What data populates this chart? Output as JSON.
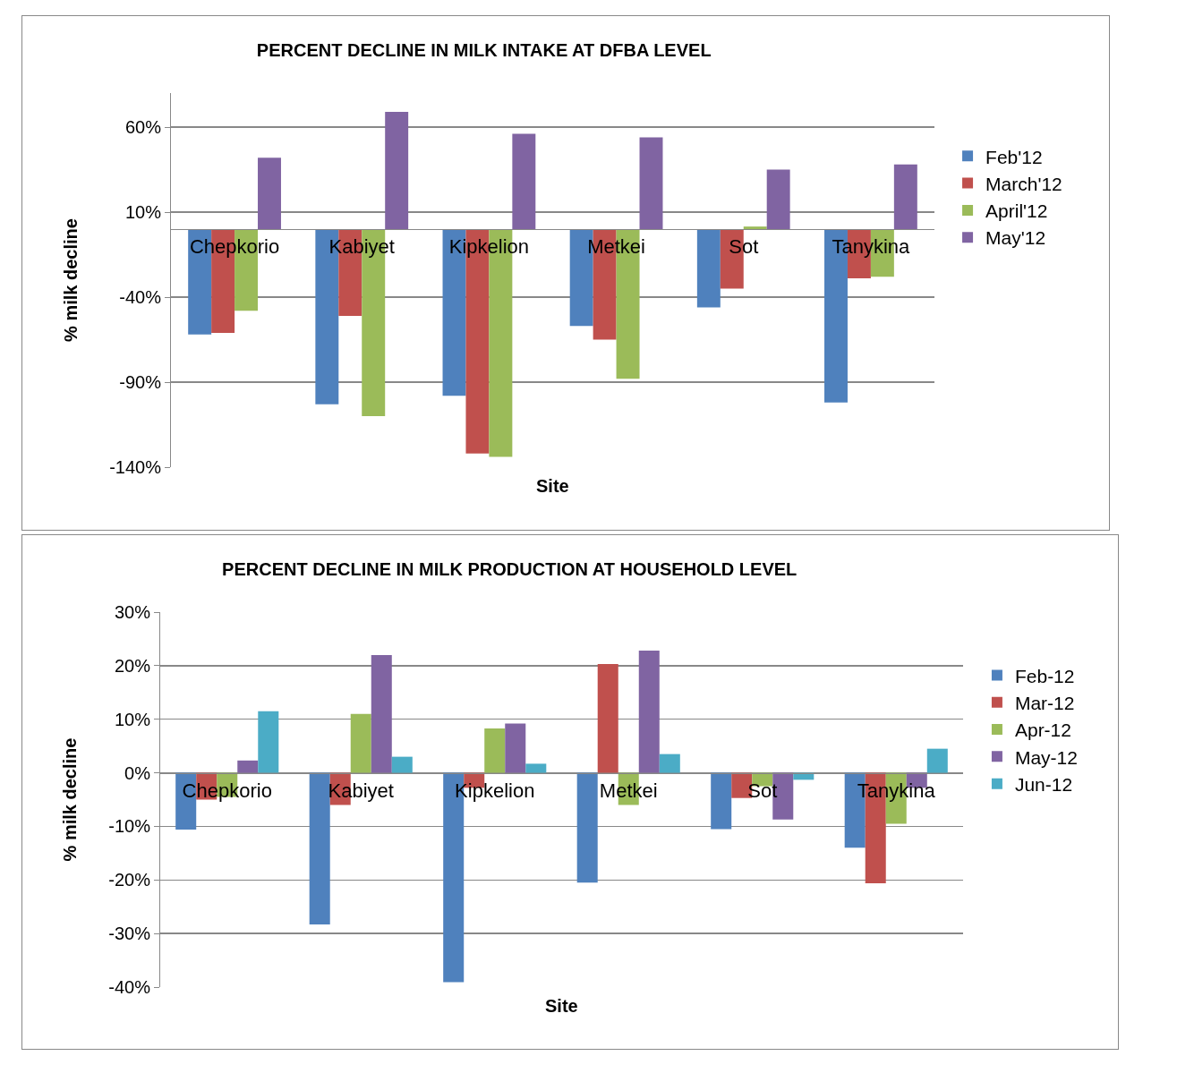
{
  "chart_data": [
    {
      "type": "bar",
      "title": "PERCENT DECLINE IN MILK INTAKE AT DFBA LEVEL",
      "xlabel": "Site",
      "ylabel": "% milk decline",
      "categories": [
        "Chepkorio",
        "Kabiyet",
        "Kipkelion",
        "Metkei",
        "Sot",
        "Tanykina"
      ],
      "series": [
        {
          "name": "Feb'12",
          "color": "#4f81bd",
          "values": [
            -62,
            -103,
            -98,
            -57,
            -46,
            -102
          ]
        },
        {
          "name": "March'12",
          "color": "#c0504d",
          "values": [
            -61,
            -51,
            -132,
            -65,
            -35,
            -29
          ]
        },
        {
          "name": "April'12",
          "color": "#9bbb59",
          "values": [
            -48,
            -110,
            -134,
            -88,
            1.5,
            -28
          ]
        },
        {
          "name": "May'12",
          "color": "#8064a2",
          "values": [
            42,
            69,
            56,
            54,
            35,
            38
          ]
        }
      ],
      "ylim": [
        -140,
        80
      ],
      "yticks": [
        {
          "value": -140,
          "label": "-140%"
        },
        {
          "value": -90,
          "label": "-90%"
        },
        {
          "value": -40,
          "label": "-40%"
        },
        {
          "value": 10,
          "label": "10%"
        },
        {
          "value": 60,
          "label": "60%"
        }
      ],
      "grid": "y",
      "legend": "right"
    },
    {
      "type": "bar",
      "title": "PERCENT DECLINE IN MILK PRODUCTION AT HOUSEHOLD LEVEL",
      "xlabel": "Site",
      "ylabel": "% milk decline",
      "categories": [
        "Chepkorio",
        "Kabiyet",
        "Kipkelion",
        "Metkei",
        "Sot",
        "Tanykina"
      ],
      "series": [
        {
          "name": "Feb-12",
          "color": "#4f81bd",
          "values": [
            -10.6,
            -28.3,
            -39.1,
            -20.5,
            -10.5,
            -14
          ]
        },
        {
          "name": "Mar-12",
          "color": "#c0504d",
          "values": [
            -5,
            -6,
            -2.8,
            20.3,
            -4.7,
            -20.6
          ]
        },
        {
          "name": "Apr-12",
          "color": "#9bbb59",
          "values": [
            -4.5,
            11,
            8.3,
            -6,
            -2.5,
            -9.5
          ]
        },
        {
          "name": "May-12",
          "color": "#8064a2",
          "values": [
            2.3,
            22,
            9.2,
            22.8,
            -8.7,
            -2.8
          ]
        },
        {
          "name": "Jun-12",
          "color": "#4bacc6",
          "values": [
            11.5,
            3,
            1.7,
            3.5,
            -1.3,
            4.5
          ]
        }
      ],
      "ylim": [
        -40,
        30
      ],
      "yticks": [
        {
          "value": -40,
          "label": "-40%"
        },
        {
          "value": -30,
          "label": "-30%"
        },
        {
          "value": -20,
          "label": "-20%"
        },
        {
          "value": -10,
          "label": "-10%"
        },
        {
          "value": 0,
          "label": "0%"
        },
        {
          "value": 10,
          "label": "10%"
        },
        {
          "value": 20,
          "label": "20%"
        },
        {
          "value": 30,
          "label": "30%"
        }
      ],
      "grid": "y",
      "legend": "right"
    }
  ]
}
